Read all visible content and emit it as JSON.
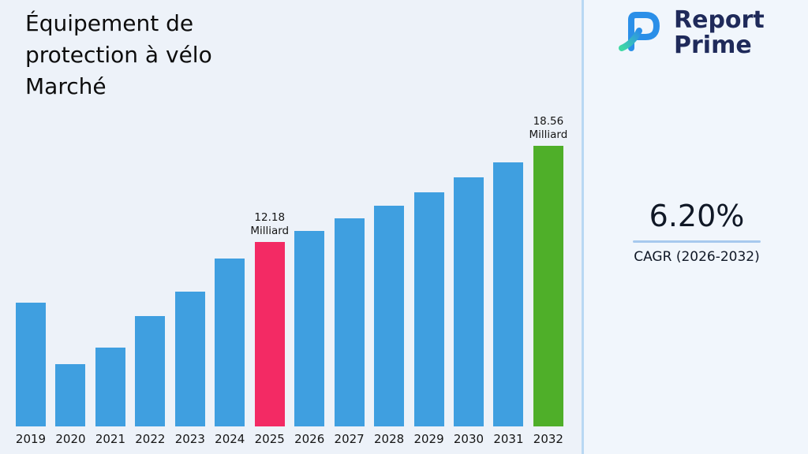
{
  "page": {
    "title": "Équipement de protection à vélo Marché"
  },
  "logo": {
    "line1": "Report",
    "line2": "Prime"
  },
  "stats": {
    "cagr_value": "6.20%",
    "cagr_label": "CAGR (2026-2032)"
  },
  "chart_data": {
    "type": "bar",
    "title": "Équipement de protection à vélo Marché",
    "unit": "Milliard",
    "categories": [
      "2019",
      "2020",
      "2021",
      "2022",
      "2023",
      "2024",
      "2025",
      "2026",
      "2027",
      "2028",
      "2029",
      "2030",
      "2031",
      "2032"
    ],
    "values": [
      8.2,
      4.1,
      5.2,
      7.3,
      8.9,
      11.1,
      12.18,
      12.94,
      13.74,
      14.59,
      15.49,
      16.45,
      17.47,
      18.56
    ],
    "ylim": [
      0,
      20
    ],
    "grid": false,
    "legend": false,
    "bar_color_default": "#3f9fe0",
    "annotations": [
      {
        "category": "2025",
        "label": "12.18\nMilliard",
        "color": "#f32a64"
      },
      {
        "category": "2032",
        "label": "18.56\nMilliard",
        "color": "#4faf29"
      }
    ]
  }
}
